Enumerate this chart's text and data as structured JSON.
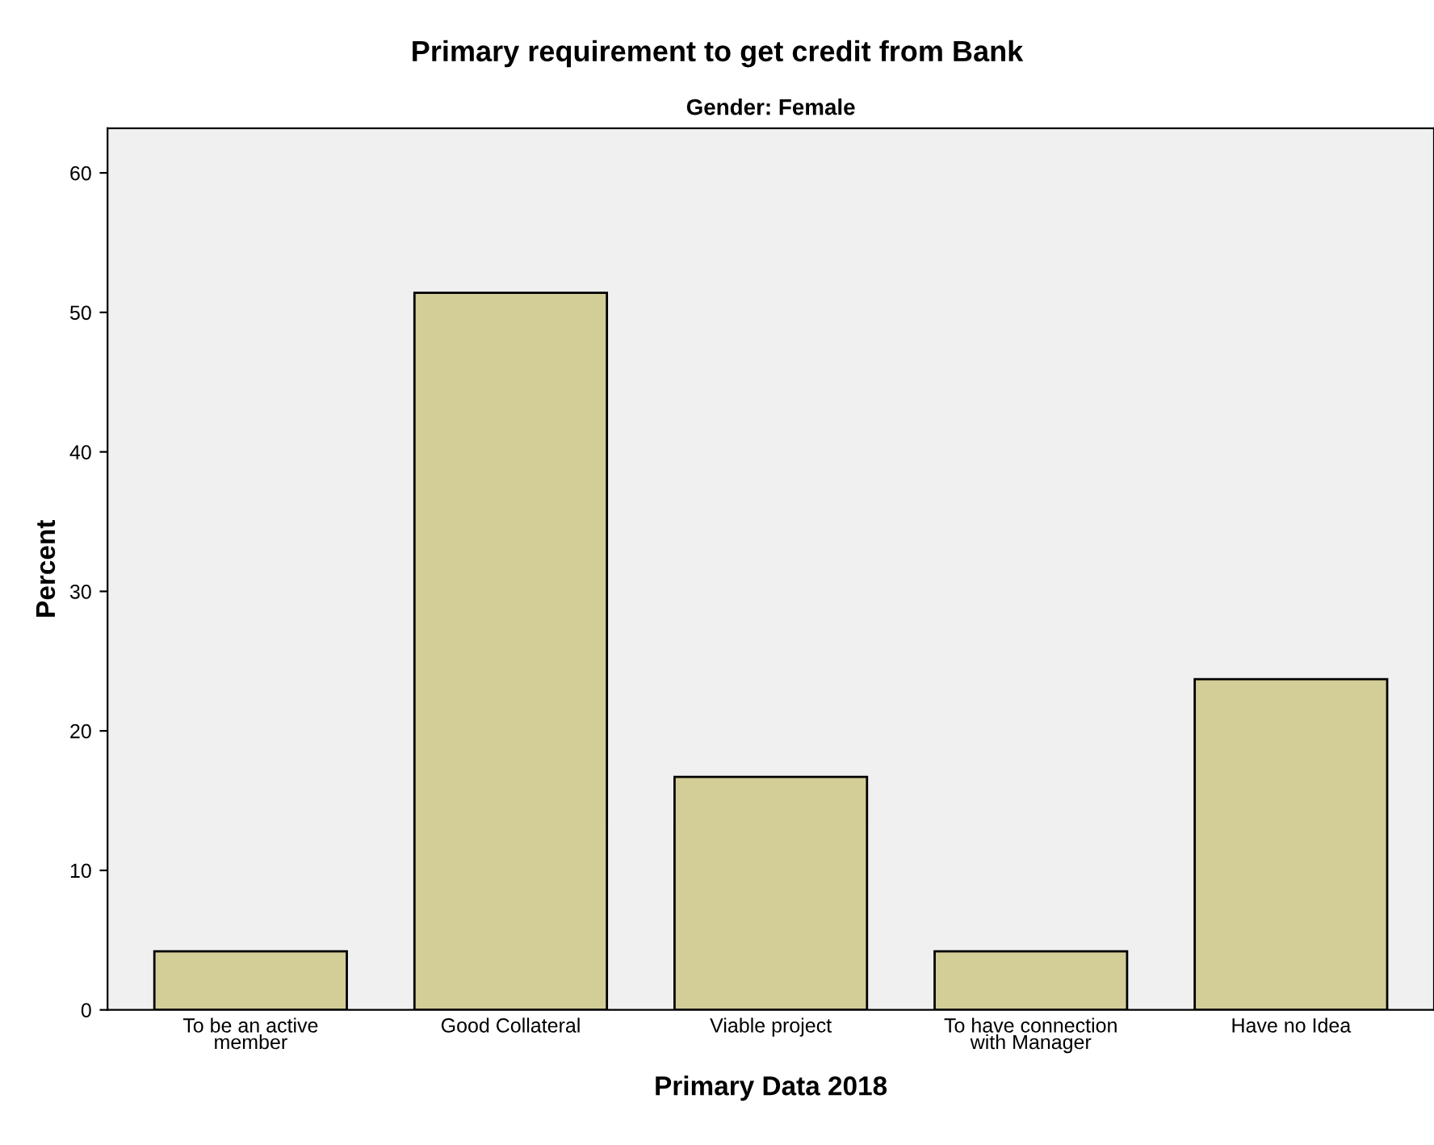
{
  "chart_data": {
    "type": "bar",
    "title": "Primary requirement to get credit from Bank",
    "subtitle": "Gender: Female",
    "xlabel": "Primary Data 2018",
    "ylabel": "Percent",
    "categories": [
      "To be an active\nmember",
      "Good Collateral",
      "Viable project",
      "To have connection\nwith Manager",
      "Have no Idea"
    ],
    "values": [
      4.2,
      51.4,
      16.7,
      4.2,
      23.7
    ],
    "color": "#d3ce97",
    "ylim": [
      0,
      63.2
    ],
    "yticks": [
      0,
      10,
      20,
      30,
      40,
      50,
      60
    ],
    "grid": false,
    "legend": false
  }
}
